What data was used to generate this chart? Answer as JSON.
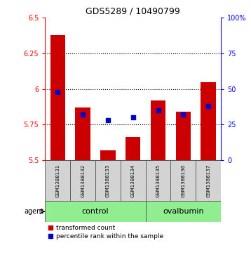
{
  "title": "GDS5289 / 10490799",
  "samples": [
    "GSM1388131",
    "GSM1388132",
    "GSM1388133",
    "GSM1388134",
    "GSM1388135",
    "GSM1388136",
    "GSM1388137"
  ],
  "transformed_count": [
    6.38,
    5.87,
    5.57,
    5.66,
    5.92,
    5.84,
    6.05
  ],
  "percentile_rank": [
    48,
    32,
    28,
    30,
    35,
    32,
    38
  ],
  "ylim": [
    5.5,
    6.5
  ],
  "yticks": [
    5.5,
    5.75,
    6.0,
    6.25,
    6.5
  ],
  "ytick_labels": [
    "5.5",
    "5.75",
    "6",
    "6.25",
    "6.5"
  ],
  "y2lim": [
    0,
    100
  ],
  "y2ticks": [
    0,
    25,
    50,
    75,
    100
  ],
  "y2tick_labels": [
    "0",
    "25",
    "50",
    "75",
    "100%"
  ],
  "bar_color": "#cc0000",
  "dot_color": "#0000cc",
  "cell_color": "#d3d3d3",
  "group_color": "#90ee90",
  "bar_width": 0.6,
  "dot_size": 25,
  "bar_bottom": 5.5,
  "grid_lines": [
    5.75,
    6.0,
    6.25
  ],
  "legend_red": "transformed count",
  "legend_blue": "percentile rank within the sample",
  "agent_label": "agent",
  "control_label": "control",
  "ovalbumin_label": "ovalbumin",
  "control_range": [
    0,
    3
  ],
  "ovalbumin_range": [
    4,
    6
  ]
}
